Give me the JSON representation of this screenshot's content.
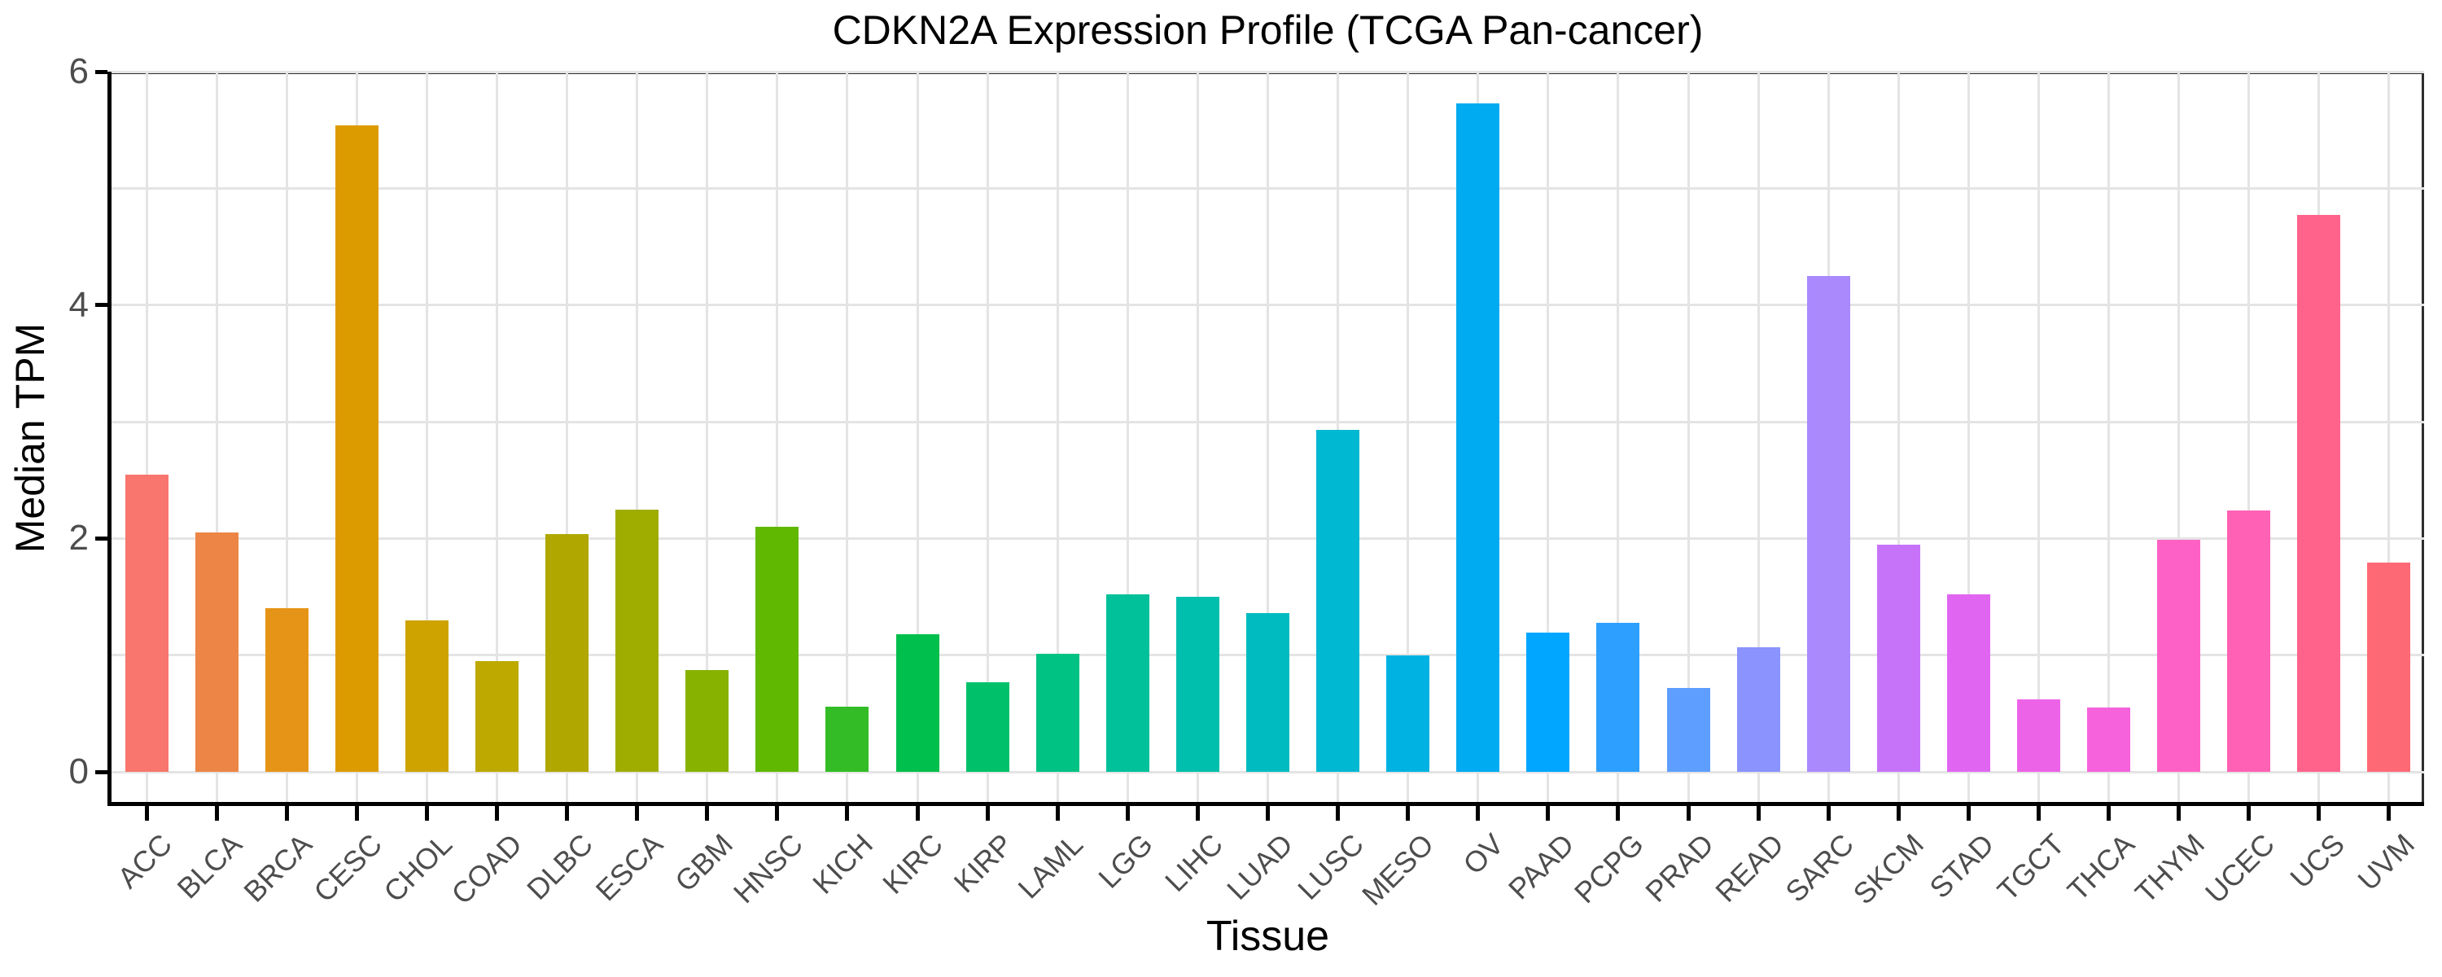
{
  "title": "CDKN2A Expression Profile (TCGA Pan-cancer)",
  "y_axis": {
    "label": "Median TPM",
    "tick_labels": [
      "0",
      "2",
      "4",
      "6"
    ],
    "tick_values": [
      0,
      2,
      4,
      6
    ]
  },
  "x_axis": {
    "label": "Tissue"
  },
  "chart_data": {
    "type": "bar",
    "title": "CDKN2A Expression Profile (TCGA Pan-cancer)",
    "xlabel": "Tissue",
    "ylabel": "Median TPM",
    "ylim": [
      0,
      6
    ],
    "grid": "on",
    "legend": "none",
    "categories": [
      "ACC",
      "BLCA",
      "BRCA",
      "CESC",
      "CHOL",
      "COAD",
      "DLBC",
      "ESCA",
      "GBM",
      "HNSC",
      "KICH",
      "KIRC",
      "KIRP",
      "LAML",
      "LGG",
      "LIHC",
      "LUAD",
      "LUSC",
      "MESO",
      "OV",
      "PAAD",
      "PCPG",
      "PRAD",
      "READ",
      "SARC",
      "SKCM",
      "STAD",
      "TGCT",
      "THCA",
      "THYM",
      "UCEC",
      "UCS",
      "UVM"
    ],
    "values": [
      2.55,
      2.05,
      1.4,
      5.54,
      1.3,
      0.95,
      2.04,
      2.25,
      0.87,
      2.1,
      0.56,
      1.18,
      0.77,
      1.01,
      1.52,
      1.5,
      1.36,
      2.93,
      1.0,
      5.73,
      1.19,
      1.28,
      0.72,
      1.07,
      4.25,
      1.95,
      1.52,
      0.62,
      0.55,
      1.99,
      2.24,
      4.77,
      1.79
    ],
    "bar_colors": [
      "#F8766D",
      "#ED8546",
      "#E69417",
      "#DC9C00",
      "#CEA300",
      "#BEA900",
      "#B0A700",
      "#9FAC00",
      "#87B200",
      "#61B800",
      "#33BC26",
      "#00BF4C",
      "#00C16A",
      "#00C283",
      "#00C199",
      "#00BFAD",
      "#00BCC0",
      "#00B8D1",
      "#00B2E2",
      "#00ABF1",
      "#00A6FF",
      "#2D9FFF",
      "#5E9EFF",
      "#8B93FF",
      "#A989FC",
      "#C673FA",
      "#E066F2",
      "#EC63E8",
      "#F562DC",
      "#FE61C5",
      "#FF61B4",
      "#FF638B",
      "#FD6A75"
    ]
  },
  "style_colors": {
    "background": "#ffffff",
    "gridline": "#e4e4e4",
    "panel_border": "#2e2e2e",
    "axis_line": "#000000",
    "tick_label_text": "#4d4d4d",
    "title_text": "#000000"
  }
}
